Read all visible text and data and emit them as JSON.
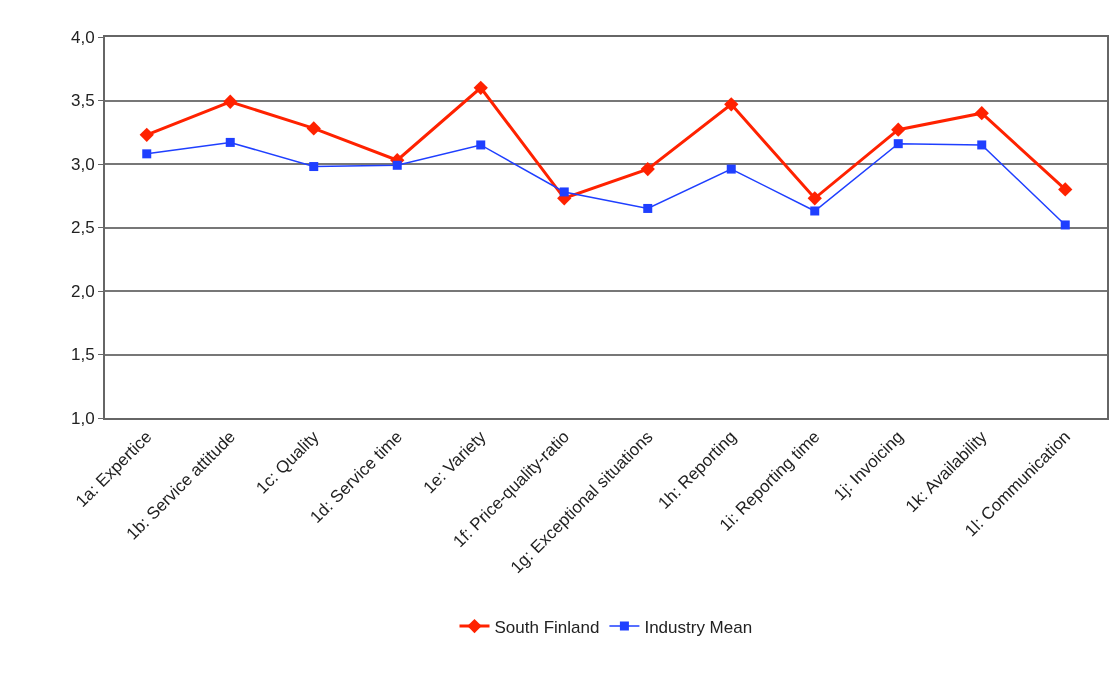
{
  "chart_data": {
    "type": "line",
    "categories": [
      "1a: Expertice",
      "1b: Service attitude",
      "1c: Quality",
      "1d: Service time",
      "1e: Variety",
      "1f: Price-quality-ratio",
      "1g: Exceptional situations",
      "1h: Reporting",
      "1i: Reporting time",
      "1j: Invoicing",
      "1k: Availability",
      "1l: Communication"
    ],
    "series": [
      {
        "name": "South Finland",
        "color": "#ff2200",
        "marker": "diamond",
        "values": [
          3.23,
          3.49,
          3.28,
          3.03,
          3.6,
          2.73,
          2.96,
          3.47,
          2.73,
          3.27,
          3.4,
          2.8
        ]
      },
      {
        "name": "Industry Mean",
        "color": "#1f3fff",
        "marker": "square",
        "values": [
          3.08,
          3.17,
          2.98,
          2.99,
          3.15,
          2.78,
          2.65,
          2.96,
          2.63,
          3.16,
          3.15,
          2.52
        ]
      }
    ],
    "ylim": [
      1,
      4
    ],
    "yticks": [
      {
        "value": 1,
        "label": "1,0"
      },
      {
        "value": 1.5,
        "label": "1,5"
      },
      {
        "value": 2,
        "label": "2,0"
      },
      {
        "value": 2.5,
        "label": "2,5"
      },
      {
        "value": 3,
        "label": "3,0"
      },
      {
        "value": 3.5,
        "label": "3,5"
      },
      {
        "value": 4,
        "label": "4,0"
      }
    ],
    "grid": "y",
    "legend": "bottom",
    "line_style": "solid"
  }
}
